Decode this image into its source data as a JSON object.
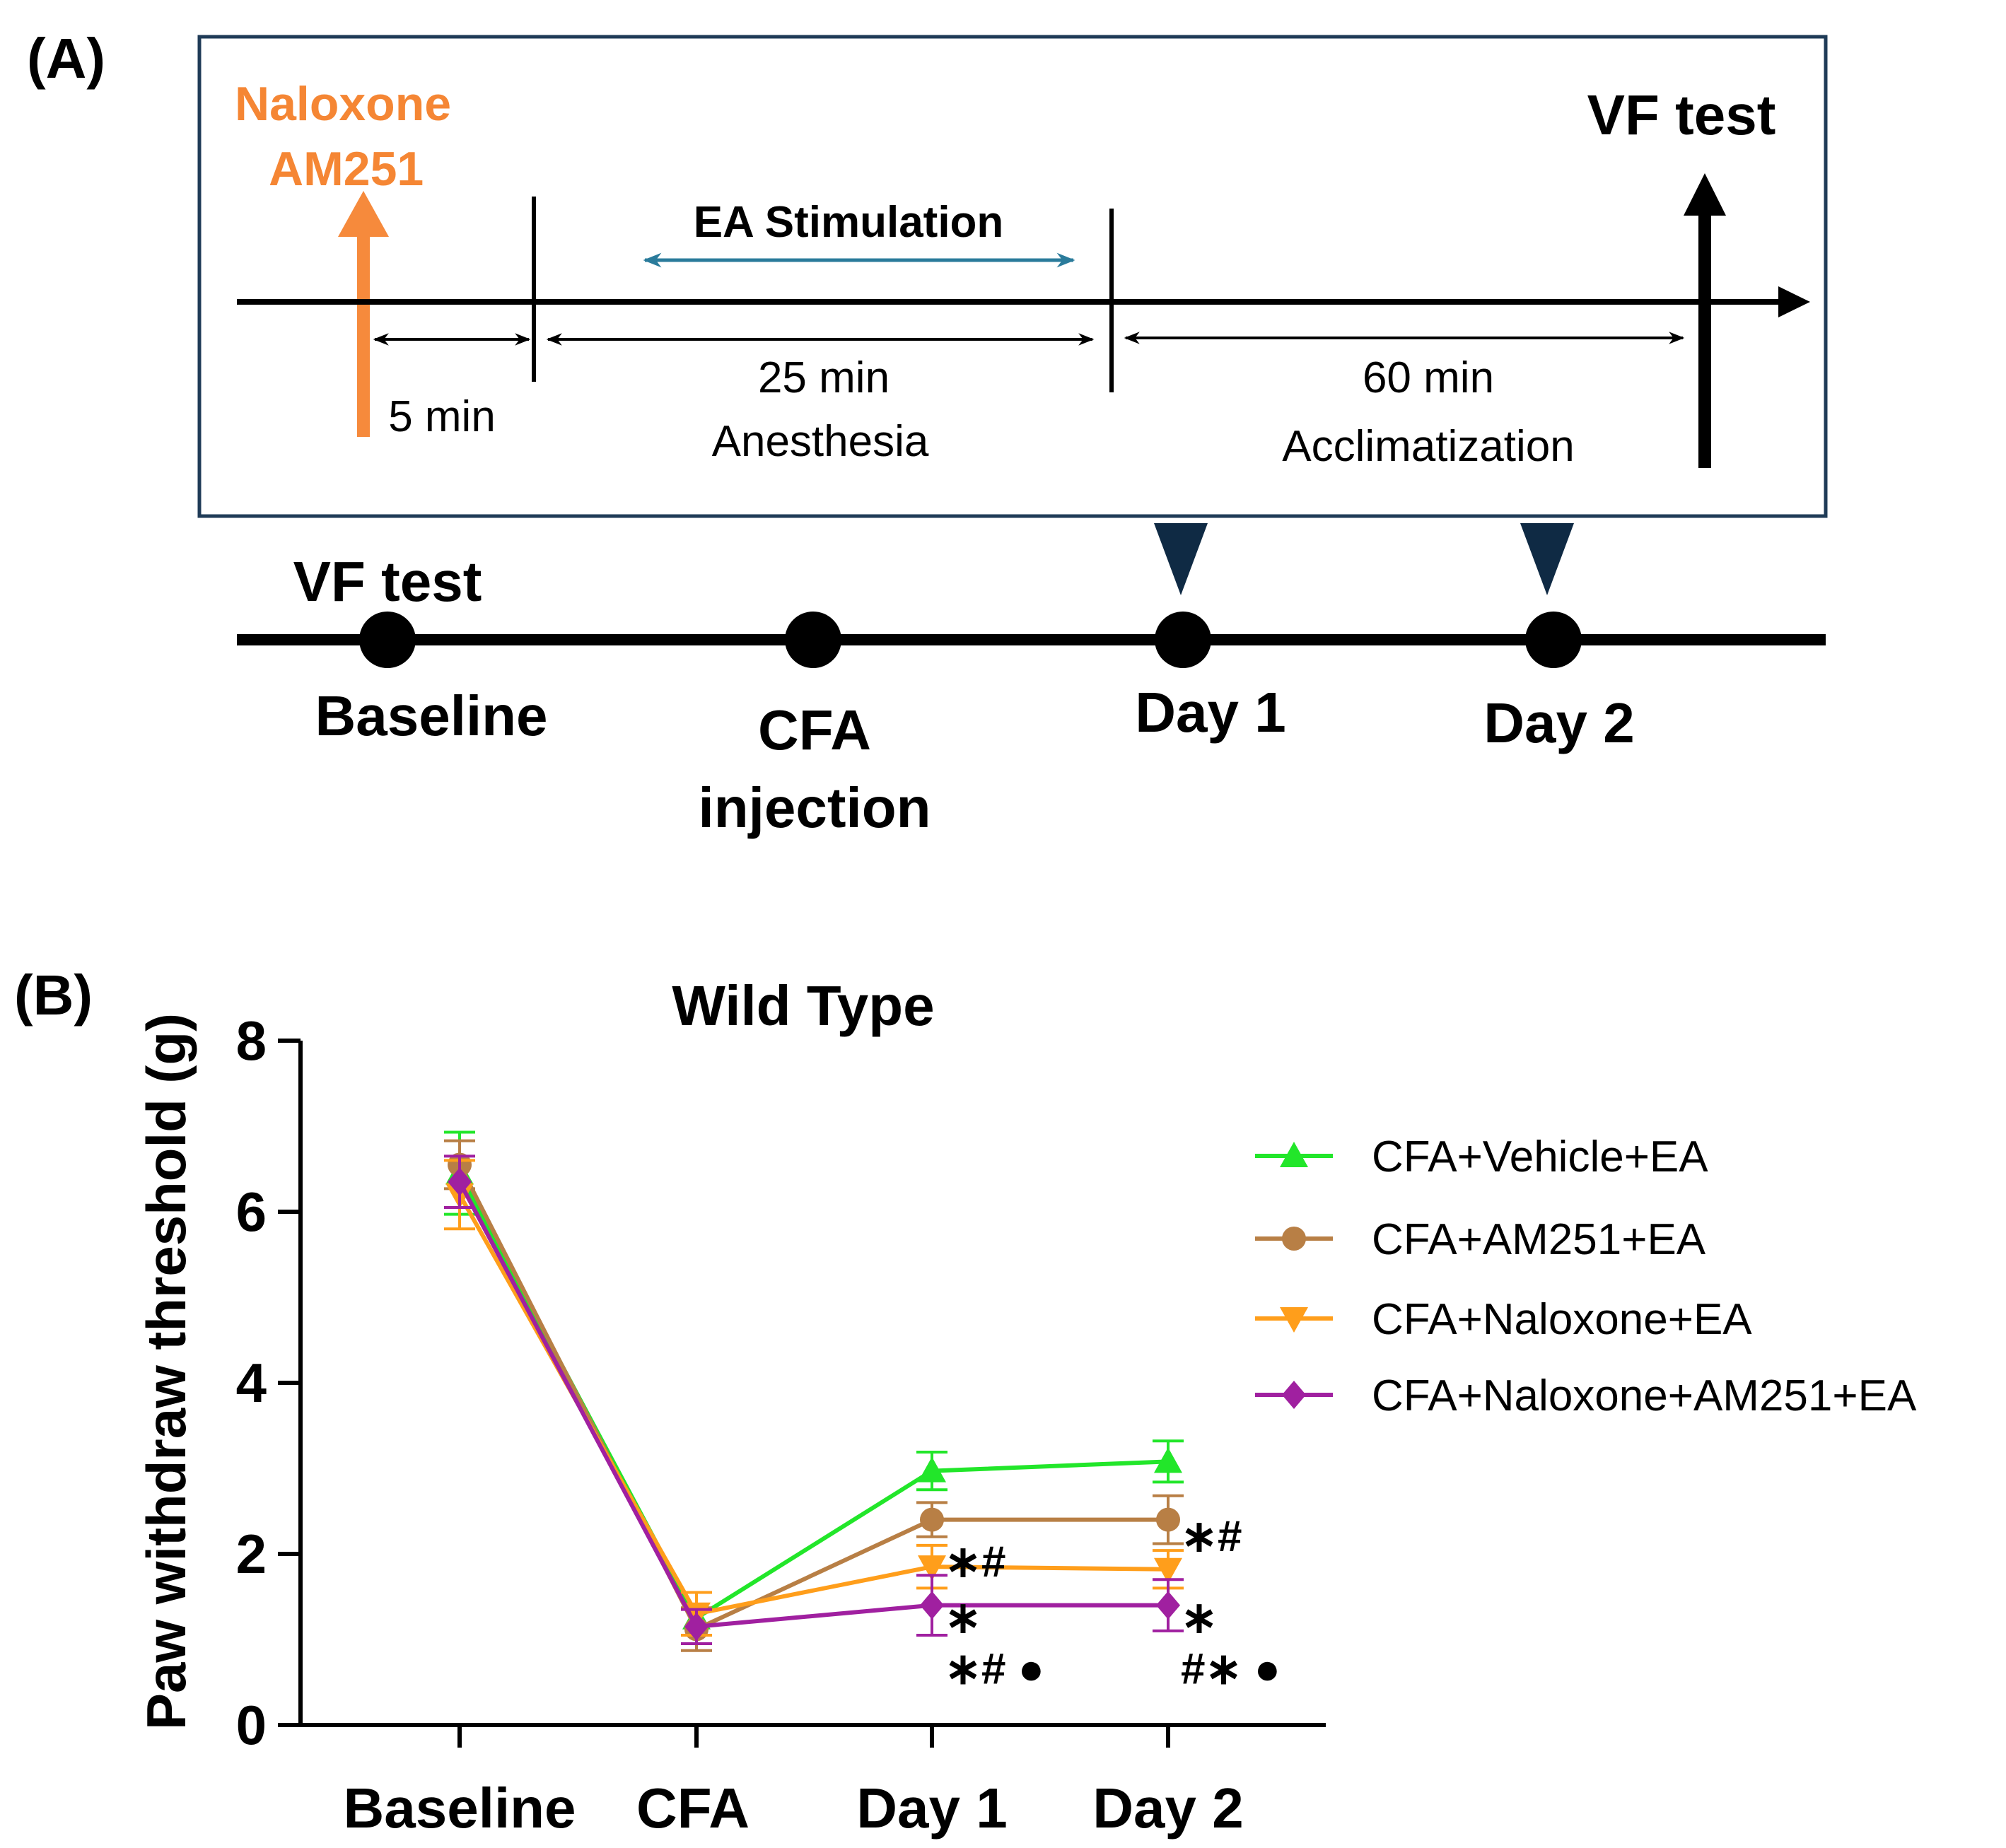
{
  "panel_a": {
    "label": "(A)",
    "drug_line1": "Naloxone",
    "drug_line2": "AM251",
    "ea_stimulation": "EA Stimulation",
    "vf_test_top": "VF test",
    "interval_5": "5 min",
    "interval_25": "25 min",
    "anesthesia": "Anesthesia",
    "interval_60": "60 min",
    "acclimatization": "Acclimatization",
    "vf_test_bottom": "VF test",
    "baseline": "Baseline",
    "cfa_line1": "CFA",
    "cfa_line2": "injection",
    "day1": "Day 1",
    "day2": "Day 2"
  },
  "panel_b": {
    "label": "(B)"
  },
  "colors": {
    "orange_text": "#F58634",
    "orange_arrow": "#F68A3C",
    "teal_arrow": "#2A7B9B",
    "box_border": "#1F3B57",
    "marker_navy": "#0F2A44",
    "vehicle": "#22E62A",
    "am251": "#B87F45",
    "naloxone": "#FF9E1B",
    "combo": "#A020A0"
  },
  "chart_data": {
    "type": "line",
    "title": "Wild Type",
    "xlabel": "",
    "ylabel": "Paw withdraw threshold (g)",
    "categories": [
      "Baseline",
      "CFA",
      "Day 1",
      "Day 2"
    ],
    "ylim": [
      0,
      8
    ],
    "yticks": [
      "0",
      "2",
      "4",
      "6",
      "8"
    ],
    "legend_position": "right",
    "series": [
      {
        "name": "CFA+Vehicle+EA",
        "marker": "triangle-up",
        "color": "#22E62A",
        "values": [
          6.45,
          1.25,
          2.97,
          3.08
        ],
        "errors": [
          0.48,
          0.3,
          0.22,
          0.24
        ]
      },
      {
        "name": "CFA+AM251+EA",
        "marker": "circle",
        "color": "#B87F45",
        "values": [
          6.55,
          1.12,
          2.4,
          2.4
        ],
        "errors": [
          0.28,
          0.25,
          0.2,
          0.28
        ]
      },
      {
        "name": "CFA+Naloxone+EA",
        "marker": "triangle-down",
        "color": "#FF9E1B",
        "values": [
          6.2,
          1.3,
          1.85,
          1.82
        ],
        "errors": [
          0.4,
          0.25,
          0.25,
          0.22
        ]
      },
      {
        "name": "CFA+Naloxone+AM251+EA",
        "marker": "diamond",
        "color": "#A020A0",
        "values": [
          6.35,
          1.15,
          1.4,
          1.4
        ],
        "errors": [
          0.3,
          0.2,
          0.35,
          0.3
        ]
      }
    ],
    "annotations": [
      {
        "category": "Day 1",
        "value": 1.9,
        "text": "∗#"
      },
      {
        "category": "Day 1",
        "value": 1.25,
        "text": "∗"
      },
      {
        "category": "Day 1",
        "value": 0.65,
        "text": "∗# ●"
      },
      {
        "category": "Day 2",
        "value": 2.2,
        "text": "∗#"
      },
      {
        "category": "Day 2",
        "value": 1.25,
        "text": "∗"
      },
      {
        "category": "Day 2",
        "value": 0.65,
        "text": "#∗ ●"
      }
    ]
  }
}
